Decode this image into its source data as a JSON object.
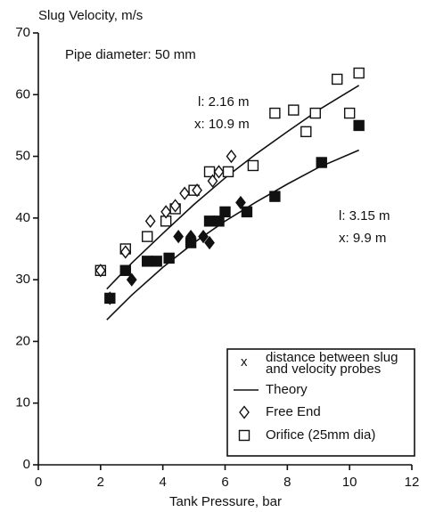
{
  "chart_data": {
    "type": "scatter",
    "title": "Slug Velocity, m/s",
    "x_label": "Tank Pressure, bar",
    "xlim": [
      0,
      12
    ],
    "xticks": [
      0,
      2,
      4,
      6,
      8,
      10,
      12
    ],
    "ylim": [
      0,
      70
    ],
    "yticks": [
      0,
      10,
      20,
      30,
      40,
      50,
      60,
      70
    ],
    "annotations": [
      "Pipe diameter: 50 mm",
      "l: 2.16 m",
      "x: 10.9 m",
      "l: 3.15 m",
      "x: 9.9 m"
    ],
    "color": "#111111",
    "series": [
      {
        "marker": "square",
        "filled": false,
        "x": [
          2.0,
          2.8,
          3.5,
          4.1,
          4.4,
          5.0,
          5.5,
          6.1,
          6.9,
          7.6,
          8.2,
          8.6,
          8.9,
          9.6,
          10.0,
          10.3
        ],
        "values": [
          31.5,
          35,
          37,
          39.5,
          41.5,
          44.5,
          47.5,
          47.5,
          48.5,
          57,
          57.5,
          54,
          57,
          62.5,
          57,
          63.5
        ]
      },
      {
        "marker": "diamond",
        "filled": false,
        "x": [
          2.0,
          2.8,
          3.6,
          4.1,
          4.4,
          4.7,
          5.1,
          5.6,
          5.8,
          6.2
        ],
        "values": [
          31.5,
          34.5,
          39.5,
          41,
          42,
          44,
          44.5,
          46,
          47.5,
          50
        ]
      },
      {
        "marker": "square",
        "filled": true,
        "x": [
          2.3,
          2.8,
          3.5,
          3.8,
          4.2,
          4.9,
          5.5,
          5.8,
          6.0,
          6.7,
          7.6,
          9.1,
          10.3
        ],
        "values": [
          27,
          31.5,
          33,
          33,
          33.5,
          36,
          39.5,
          39.5,
          41,
          41,
          43.5,
          49,
          55
        ]
      },
      {
        "marker": "diamond",
        "filled": true,
        "x": [
          2.3,
          3.0,
          4.5,
          4.9,
          5.3,
          5.5,
          6.5
        ],
        "values": [
          27,
          30,
          37,
          37,
          37,
          36,
          42.5
        ]
      }
    ],
    "theory": [
      {
        "x": [
          2.2,
          3,
          4,
          5,
          6,
          7,
          8,
          9,
          10.3
        ],
        "values": [
          28.5,
          32.7,
          37.5,
          42.2,
          46.5,
          50.4,
          54,
          57.5,
          61.5
        ]
      },
      {
        "x": [
          2.2,
          3,
          4,
          5,
          6,
          7,
          8,
          9,
          10.3
        ],
        "values": [
          23.5,
          27.5,
          32,
          36,
          39.5,
          42.6,
          45.5,
          48.2,
          51
        ]
      }
    ],
    "legend": [
      {
        "key": "x",
        "text": [
          "distance between slug",
          "and velocity probes"
        ]
      },
      {
        "symbol": "line",
        "text": [
          "Theory"
        ]
      },
      {
        "symbol": "diamond",
        "text": [
          "Free End"
        ]
      },
      {
        "symbol": "square",
        "text": [
          "Orifice (25mm dia)"
        ]
      }
    ]
  }
}
